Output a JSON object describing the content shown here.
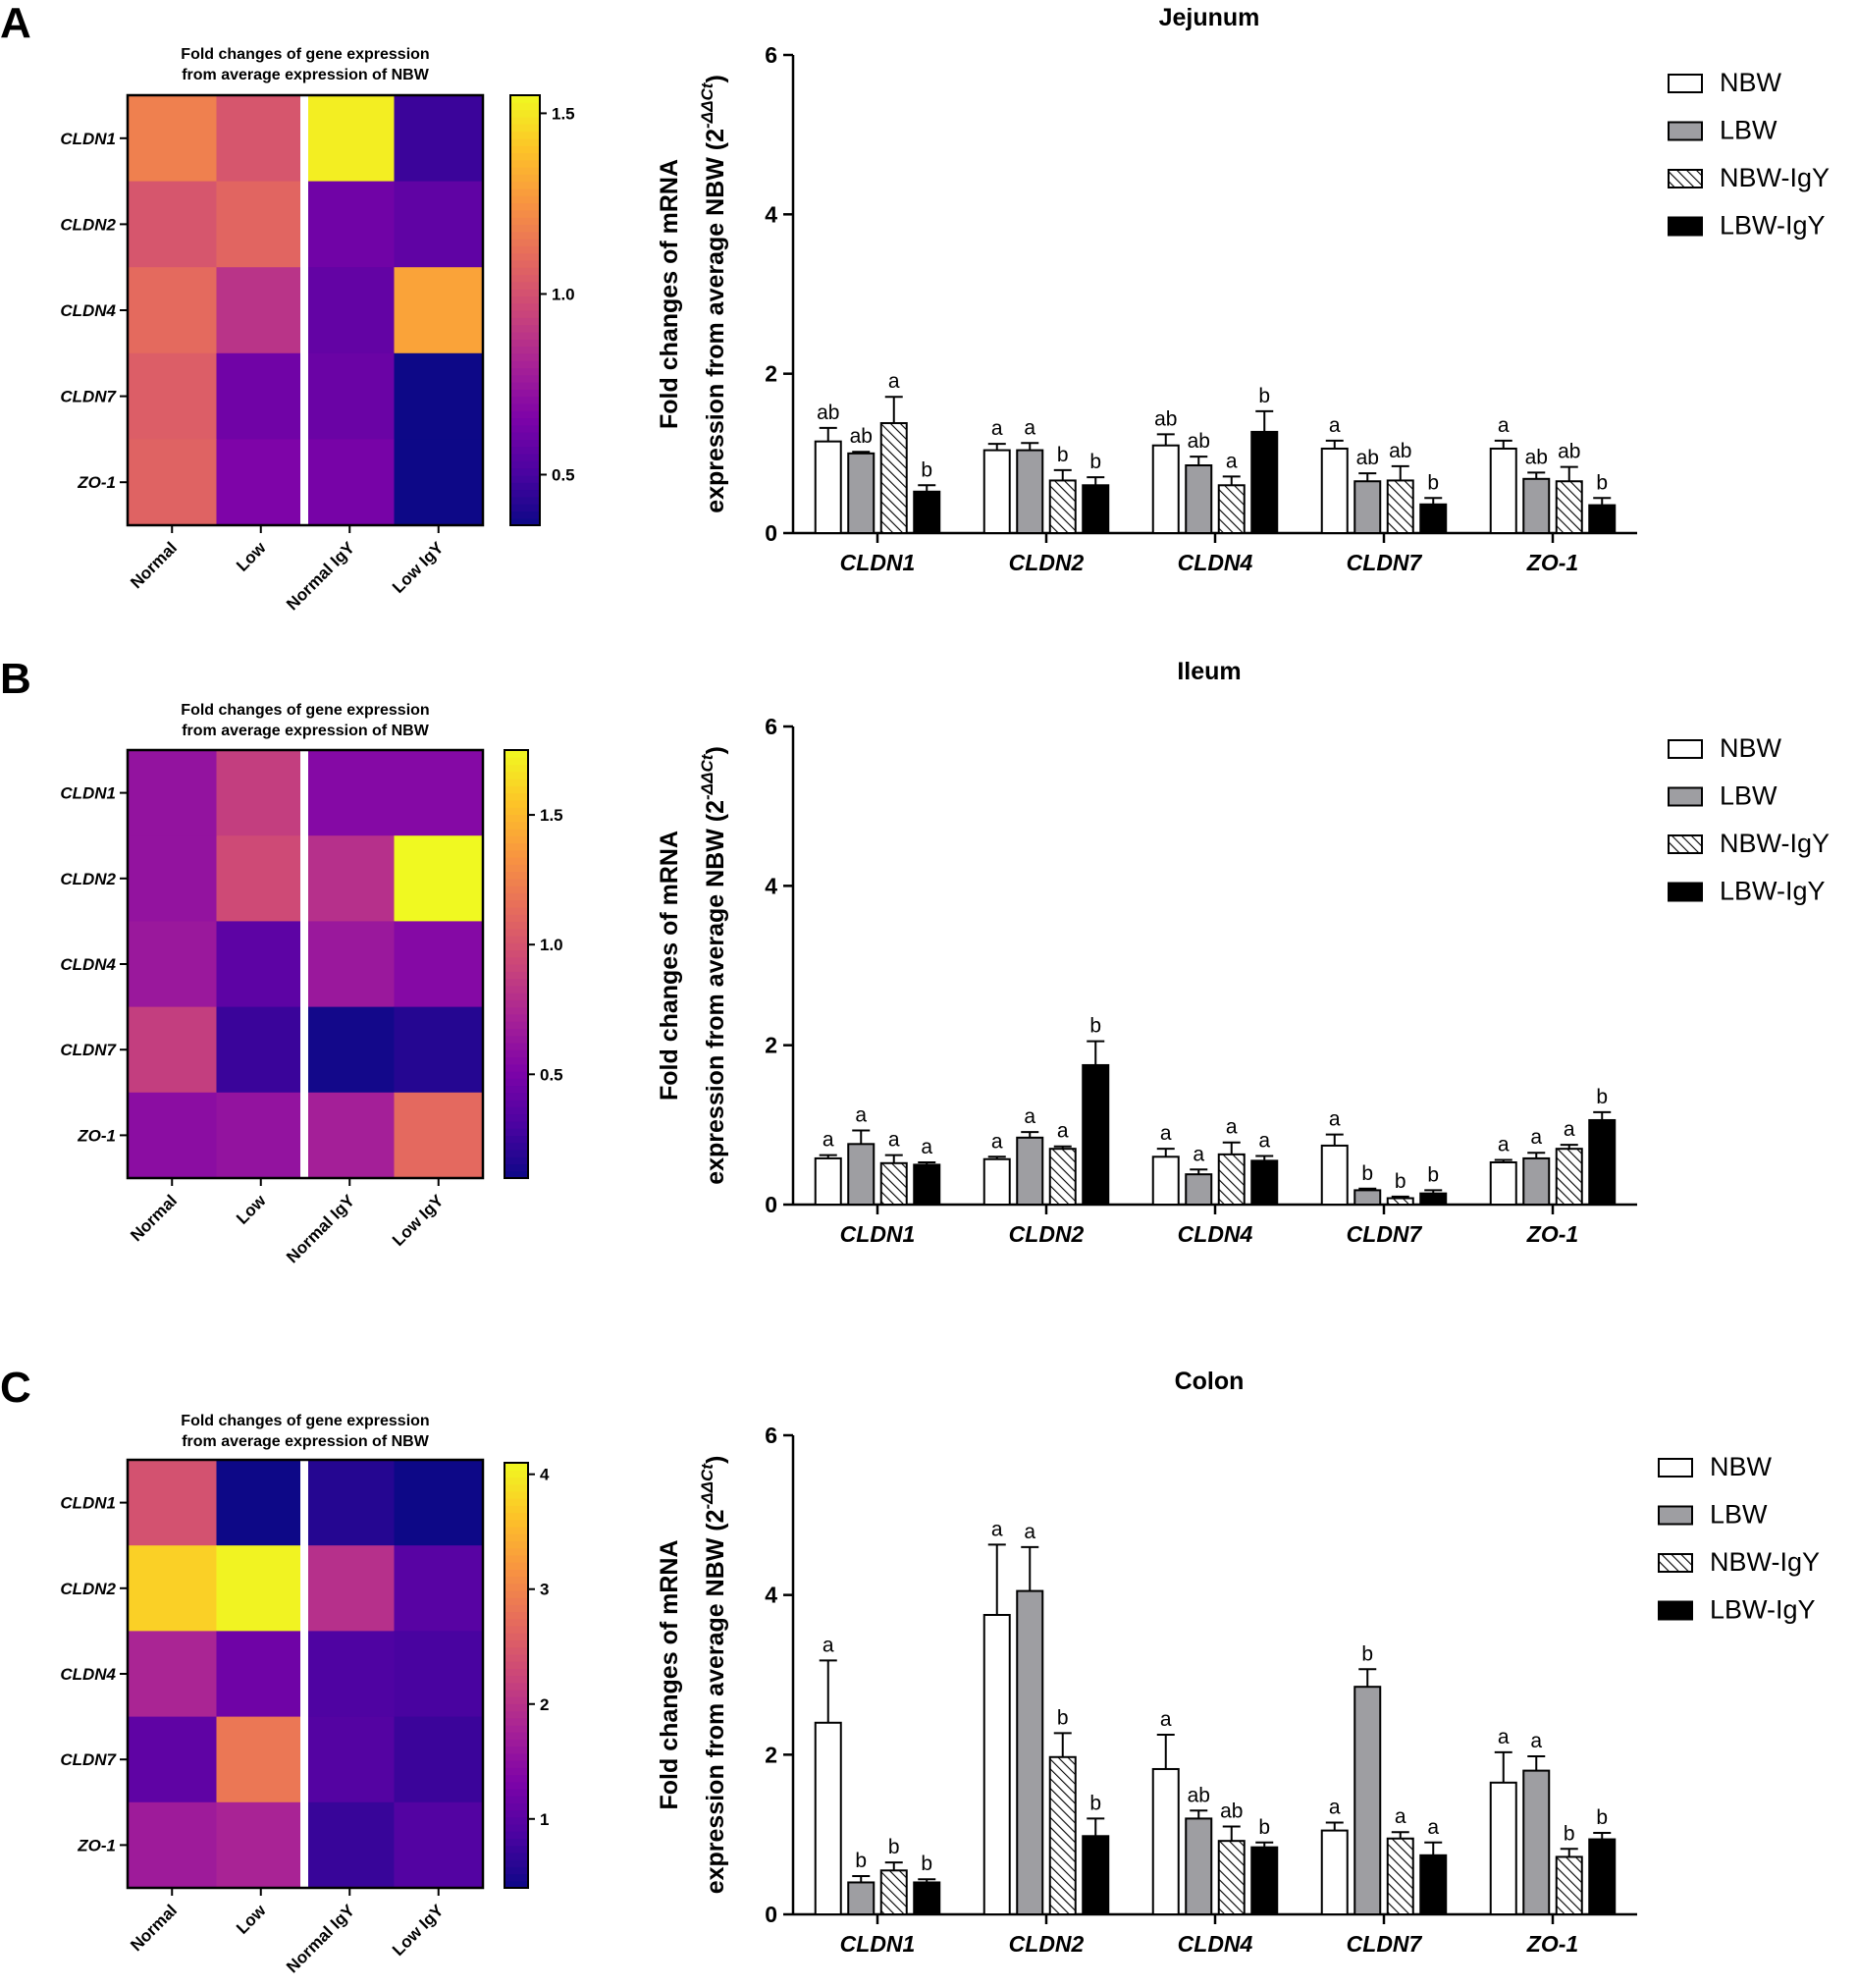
{
  "colors": {
    "nbw_fill": "#ffffff",
    "lbw_fill": "#9e9ea2",
    "nbwigy_fill": "#ffffff",
    "lbwigy_fill": "#000000",
    "stroke": "#000000",
    "heatmap_palette": "plasma"
  },
  "chart_data": [
    {
      "panel": "A",
      "type": "heatmap",
      "title": "Fold changes of gene expression\nfrom average expression of NBW",
      "rows": [
        "CLDN1",
        "CLDN2",
        "CLDN4",
        "CLDN7",
        "ZO-1"
      ],
      "columns": [
        "Normal",
        "Low",
        "Normal IgY",
        "Low IgY"
      ],
      "values": [
        [
          1.18,
          1.02,
          1.52,
          0.47
        ],
        [
          1.02,
          1.08,
          0.62,
          0.57
        ],
        [
          1.1,
          0.88,
          0.58,
          1.3
        ],
        [
          1.05,
          0.62,
          0.6,
          0.36
        ],
        [
          1.07,
          0.66,
          0.64,
          0.36
        ]
      ],
      "colorbar": {
        "min": 0.36,
        "max": 1.55,
        "ticks": [
          0.5,
          1.0,
          1.5
        ],
        "tick_labels": [
          "0.5",
          "1.0",
          "1.5"
        ]
      }
    },
    {
      "panel": "A",
      "type": "bar",
      "title": "Jejunum",
      "ylabel": "Fold changes of mRNA\nexpression from average NBW (2^-ΔΔCt)",
      "ylim": [
        0,
        6
      ],
      "yticks": [
        0,
        2,
        4,
        6
      ],
      "categories": [
        "CLDN1",
        "CLDN2",
        "CLDN4",
        "CLDN7",
        "ZO-1"
      ],
      "series": [
        {
          "name": "NBW",
          "values": [
            1.15,
            1.04,
            1.1,
            1.06,
            1.06
          ],
          "errors": [
            0.17,
            0.08,
            0.14,
            0.1,
            0.1
          ],
          "letters": [
            "ab",
            "a",
            "ab",
            "a",
            "a"
          ]
        },
        {
          "name": "LBW",
          "values": [
            1.0,
            1.04,
            0.85,
            0.65,
            0.68
          ],
          "errors": [
            0.02,
            0.09,
            0.11,
            0.1,
            0.08
          ],
          "letters": [
            "ab",
            "a",
            "ab",
            "ab",
            "ab"
          ]
        },
        {
          "name": "NBW-IgY",
          "values": [
            1.38,
            0.66,
            0.6,
            0.66,
            0.65
          ],
          "errors": [
            0.33,
            0.13,
            0.11,
            0.18,
            0.18
          ],
          "letters": [
            "a",
            "b",
            "a",
            "ab",
            "ab"
          ]
        },
        {
          "name": "LBW-IgY",
          "values": [
            0.52,
            0.6,
            1.27,
            0.36,
            0.35
          ],
          "errors": [
            0.08,
            0.1,
            0.26,
            0.08,
            0.09
          ],
          "letters": [
            "b",
            "b",
            "b",
            "b",
            "b"
          ]
        }
      ],
      "legend": [
        "NBW",
        "LBW",
        "NBW-IgY",
        "LBW-IgY"
      ],
      "legend_position": "top-right"
    },
    {
      "panel": "B",
      "type": "heatmap",
      "title": "Fold changes of gene expression\nfrom average expression of NBW",
      "rows": [
        "CLDN1",
        "CLDN2",
        "CLDN4",
        "CLDN7",
        "ZO-1"
      ],
      "columns": [
        "Normal",
        "Low",
        "Normal IgY",
        "Low IgY"
      ],
      "values": [
        [
          0.62,
          0.88,
          0.55,
          0.55
        ],
        [
          0.62,
          0.95,
          0.8,
          1.75
        ],
        [
          0.65,
          0.38,
          0.65,
          0.55
        ],
        [
          0.88,
          0.25,
          0.12,
          0.18
        ],
        [
          0.58,
          0.62,
          0.7,
          1.12
        ]
      ],
      "colorbar": {
        "min": 0.1,
        "max": 1.75,
        "ticks": [
          0.5,
          1.0,
          1.5
        ],
        "tick_labels": [
          "0.5",
          "1.0",
          "1.5"
        ]
      }
    },
    {
      "panel": "B",
      "type": "bar",
      "title": "Ileum",
      "ylabel": "Fold changes of mRNA\nexpression from average NBW (2^-ΔΔCt)",
      "ylim": [
        0,
        6
      ],
      "yticks": [
        0,
        2,
        4,
        6
      ],
      "categories": [
        "CLDN1",
        "CLDN2",
        "CLDN4",
        "CLDN7",
        "ZO-1"
      ],
      "series": [
        {
          "name": "NBW",
          "values": [
            0.58,
            0.57,
            0.6,
            0.74,
            0.53
          ],
          "errors": [
            0.04,
            0.03,
            0.1,
            0.14,
            0.03
          ],
          "letters": [
            "a",
            "a",
            "a",
            "a",
            "a"
          ]
        },
        {
          "name": "LBW",
          "values": [
            0.76,
            0.84,
            0.38,
            0.18,
            0.58
          ],
          "errors": [
            0.17,
            0.07,
            0.06,
            0.02,
            0.07
          ],
          "letters": [
            "a",
            "a",
            "a",
            "b",
            "a"
          ]
        },
        {
          "name": "NBW-IgY",
          "values": [
            0.52,
            0.7,
            0.63,
            0.08,
            0.7
          ],
          "errors": [
            0.1,
            0.03,
            0.15,
            0.02,
            0.05
          ],
          "letters": [
            "a",
            "a",
            "a",
            "b",
            "a"
          ]
        },
        {
          "name": "LBW-IgY",
          "values": [
            0.5,
            1.75,
            0.55,
            0.14,
            1.06
          ],
          "errors": [
            0.03,
            0.3,
            0.06,
            0.04,
            0.1
          ],
          "letters": [
            "a",
            "b",
            "a",
            "b",
            "b"
          ]
        }
      ],
      "legend": [
        "NBW",
        "LBW",
        "NBW-IgY",
        "LBW-IgY"
      ],
      "legend_position": "top-right"
    },
    {
      "panel": "C",
      "type": "heatmap",
      "title": "Fold changes of gene expression\nfrom average expression of NBW",
      "rows": [
        "CLDN1",
        "CLDN2",
        "CLDN4",
        "CLDN7",
        "ZO-1"
      ],
      "columns": [
        "Normal",
        "Low",
        "Normal IgY",
        "Low IgY"
      ],
      "values": [
        [
          2.4,
          0.4,
          0.58,
          0.4
        ],
        [
          3.75,
          4.05,
          1.97,
          0.98
        ],
        [
          1.82,
          1.2,
          0.9,
          0.85
        ],
        [
          1.05,
          2.85,
          0.95,
          0.74
        ],
        [
          1.68,
          1.8,
          0.72,
          0.94
        ]
      ],
      "colorbar": {
        "min": 0.4,
        "max": 4.1,
        "ticks": [
          1,
          2,
          3,
          4
        ],
        "tick_labels": [
          "1",
          "2",
          "3",
          "4"
        ]
      }
    },
    {
      "panel": "C",
      "type": "bar",
      "title": "Colon",
      "ylabel": "Fold changes of mRNA\nexpression from average NBW (2^-ΔΔCt)",
      "ylim": [
        0,
        6
      ],
      "yticks": [
        0,
        2,
        4,
        6
      ],
      "categories": [
        "CLDN1",
        "CLDN2",
        "CLDN4",
        "CLDN7",
        "ZO-1"
      ],
      "series": [
        {
          "name": "NBW",
          "values": [
            2.4,
            3.75,
            1.82,
            1.05,
            1.65
          ],
          "errors": [
            0.78,
            0.88,
            0.43,
            0.1,
            0.38
          ],
          "letters": [
            "a",
            "a",
            "a",
            "a",
            "a"
          ]
        },
        {
          "name": "LBW",
          "values": [
            0.4,
            4.05,
            1.2,
            2.85,
            1.8
          ],
          "errors": [
            0.08,
            0.55,
            0.1,
            0.22,
            0.18
          ],
          "letters": [
            "b",
            "a",
            "ab",
            "b",
            "a"
          ]
        },
        {
          "name": "NBW-IgY",
          "values": [
            0.55,
            1.97,
            0.92,
            0.95,
            0.72
          ],
          "errors": [
            0.1,
            0.3,
            0.18,
            0.08,
            0.1
          ],
          "letters": [
            "b",
            "b",
            "ab",
            "a",
            "b"
          ]
        },
        {
          "name": "LBW-IgY",
          "values": [
            0.4,
            0.98,
            0.84,
            0.74,
            0.94
          ],
          "errors": [
            0.04,
            0.22,
            0.06,
            0.16,
            0.08
          ],
          "letters": [
            "b",
            "b",
            "b",
            "a",
            "b"
          ]
        }
      ],
      "legend": [
        "NBW",
        "LBW",
        "NBW-IgY",
        "LBW-IgY"
      ],
      "legend_position": "top-right"
    }
  ],
  "panel_labels": [
    "A",
    "B",
    "C"
  ],
  "ylabel_line1": "Fold changes of mRNA",
  "ylabel_line2_text": "expression from average NBW (2",
  "ylabel_superscript": "-ΔΔCt",
  "ylabel_close": ")"
}
